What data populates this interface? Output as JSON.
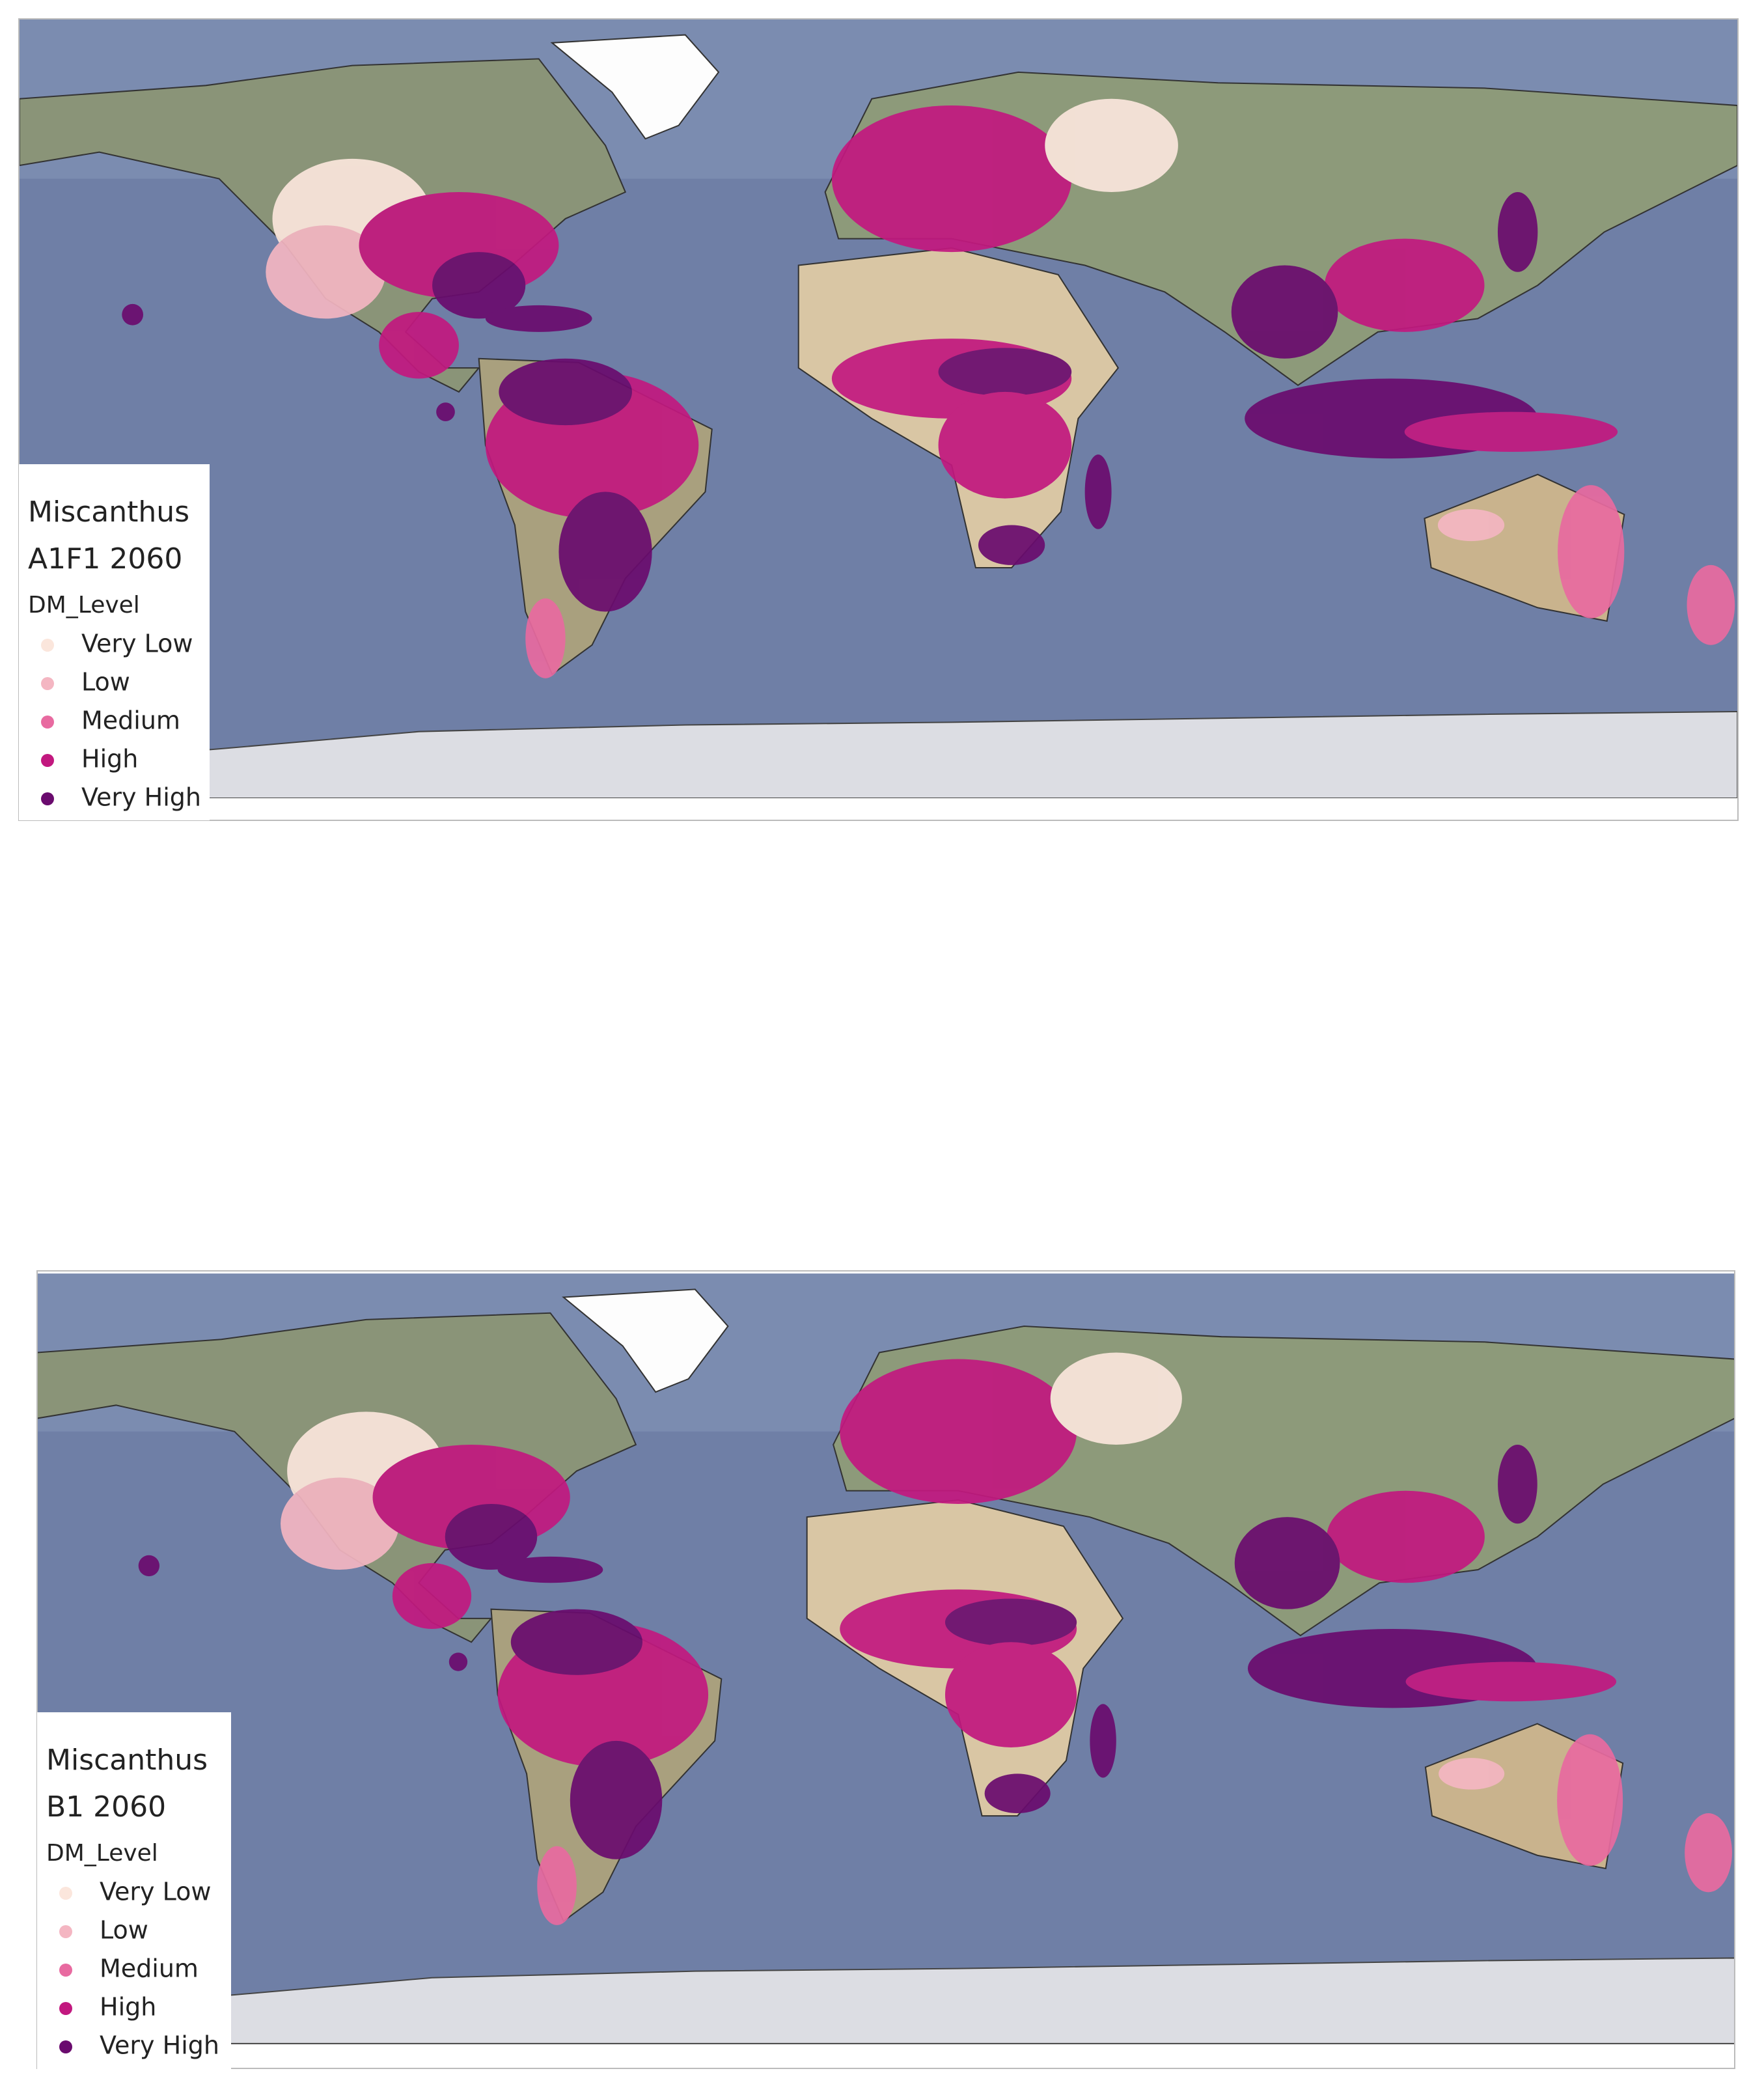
{
  "maps": [
    {
      "title": "Miscanthus",
      "subtitle": "A1F1 2060",
      "legend": {
        "title": "DM_Level",
        "items": [
          {
            "label": "Very Low",
            "color": "#fbe6dc"
          },
          {
            "label": "Low",
            "color": "#f4b6c2"
          },
          {
            "label": "Medium",
            "color": "#e86aa0"
          },
          {
            "label": "High",
            "color": "#c2187f"
          },
          {
            "label": "Very High",
            "color": "#6a0b6e"
          }
        ]
      }
    },
    {
      "title": "Miscanthus",
      "subtitle": "B1 2060",
      "legend": {
        "title": "DM_Level",
        "items": [
          {
            "label": "Very Low",
            "color": "#fbe6dc"
          },
          {
            "label": "Low",
            "color": "#f4b6c2"
          },
          {
            "label": "Medium",
            "color": "#e86aa0"
          },
          {
            "label": "High",
            "color": "#c2187f"
          },
          {
            "label": "Very High",
            "color": "#6a0b6e"
          }
        ]
      }
    }
  ]
}
